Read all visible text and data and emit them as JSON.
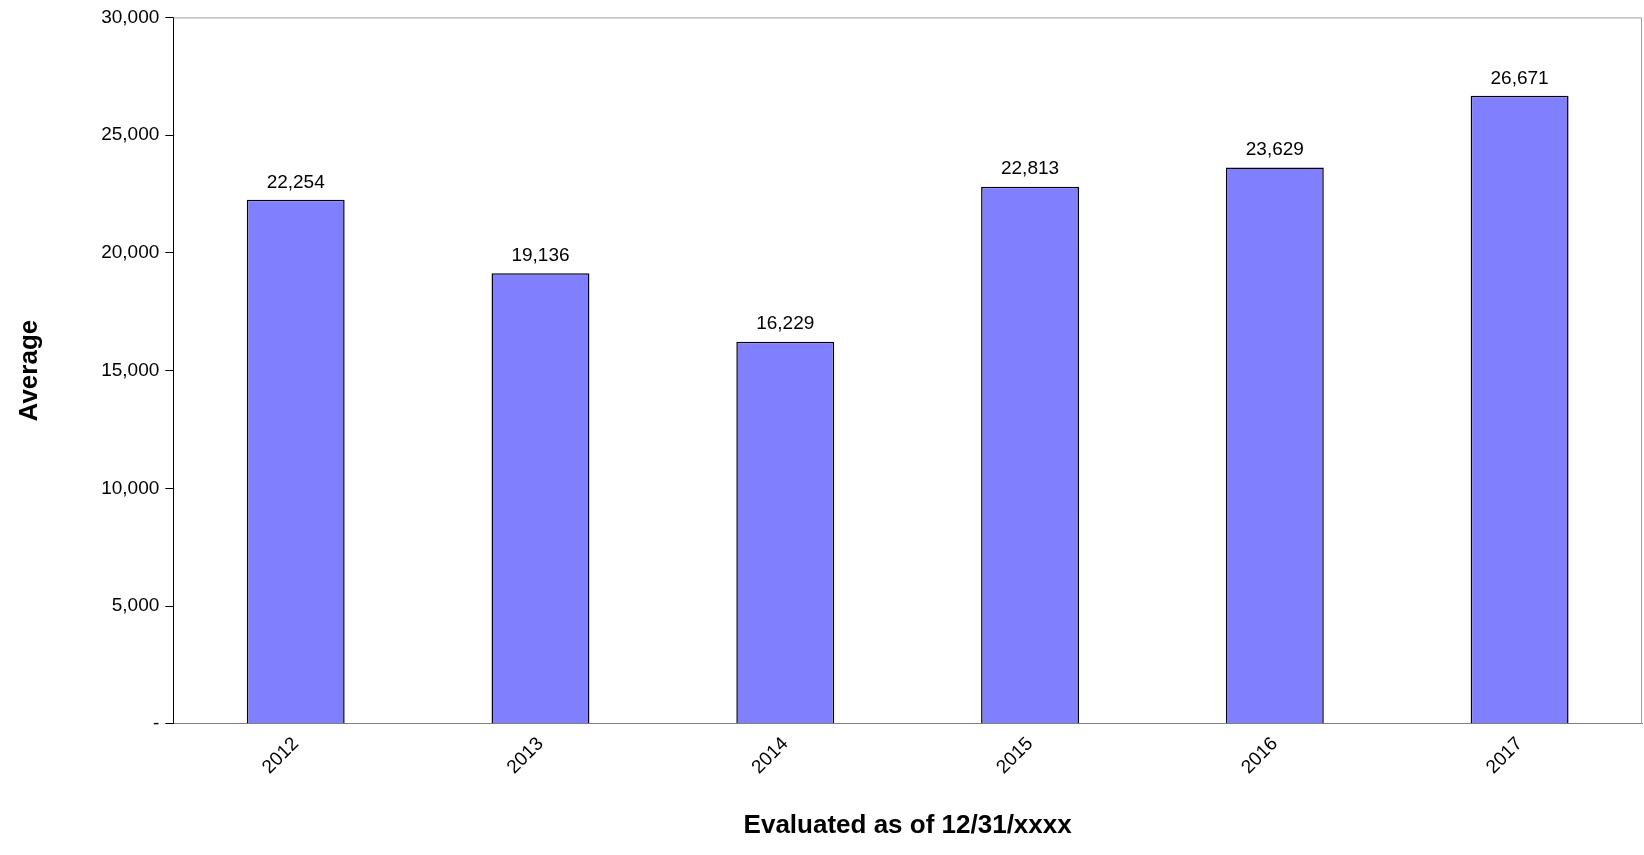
{
  "chart_data": {
    "type": "bar",
    "xlabel": "Evaluated as of 12/31/xxxx",
    "ylabel": "Average",
    "categories": [
      "2012",
      "2013",
      "2014",
      "2015",
      "2016",
      "2017"
    ],
    "values": [
      22254,
      19136,
      16229,
      22813,
      23629,
      26671
    ],
    "color": "#8080ff",
    "ylim": [
      0,
      30000
    ],
    "yticks": [
      {
        "value": 0,
        "label": "-"
      },
      {
        "value": 5000,
        "label": "5,000"
      },
      {
        "value": 10000,
        "label": "10,000"
      },
      {
        "value": 15000,
        "label": "15,000"
      },
      {
        "value": 20000,
        "label": "20,000"
      },
      {
        "value": 25000,
        "label": "25,000"
      },
      {
        "value": 30000,
        "label": "30,000"
      }
    ],
    "value_labels": [
      "22,254",
      "19,136",
      "16,229",
      "22,813",
      "23,629",
      "26,671"
    ],
    "grid": false,
    "legend": false
  }
}
